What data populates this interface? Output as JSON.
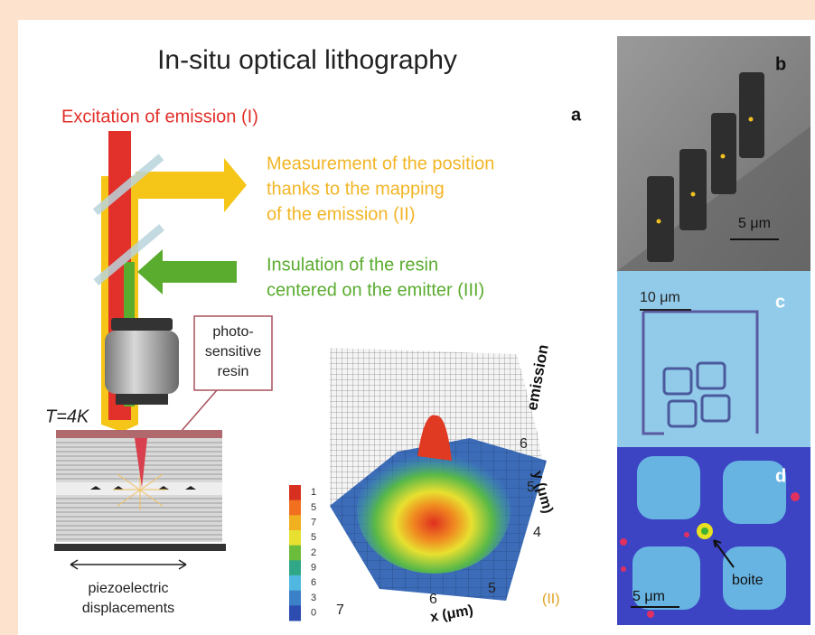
{
  "title": "In-situ optical lithography",
  "panel_a": {
    "label": "a",
    "excitation": "Excitation of emission (I)",
    "measurement": [
      "Measurement of the position",
      "thanks to the mapping",
      "of the emission (II)"
    ],
    "insulation": [
      "Insulation of the resin",
      "centered on the emitter (III)"
    ],
    "resin_label": [
      "photo-",
      "sensitive",
      "resin"
    ],
    "temperature": "T=4K",
    "piezo": [
      "piezoelectric",
      "displacements"
    ],
    "colorbar": [
      "1",
      "5",
      "7",
      "5",
      "2",
      "9",
      "6",
      "3",
      "0"
    ],
    "plot": {
      "z_label": "emission",
      "y_label": "y (μm)",
      "y_ticks": [
        "6",
        "5",
        "4"
      ],
      "x_label": "x (μm)",
      "x_ticks": [
        "7",
        "6",
        "5"
      ],
      "step": "(II)"
    }
  },
  "panel_b": {
    "label": "b",
    "scale": "5 μm"
  },
  "panel_c": {
    "label": "c",
    "scale": "10 μm"
  },
  "panel_d": {
    "label": "d",
    "annotation": "boite",
    "scale": "5 μm"
  }
}
